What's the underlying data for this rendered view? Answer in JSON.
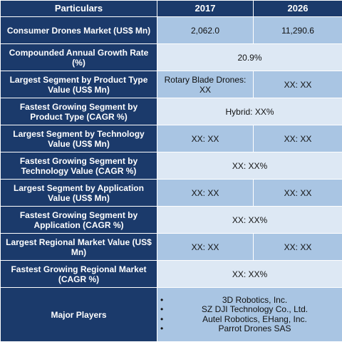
{
  "header": {
    "particulars": "Particulars",
    "year1": "2017",
    "year2": "2026"
  },
  "rows": {
    "market": {
      "label": "Consumer Drones Market (US$ Mn)",
      "v1": "2,062.0",
      "v2": "11,290.6"
    },
    "cagr": {
      "label": "Compounded Annual Growth Rate (%)",
      "value": "20.9%"
    },
    "seg_pt": {
      "label": "Largest Segment by Product Type Value (US$ Mn)",
      "v1": "Rotary Blade Drones: XX",
      "v2": "XX:  XX"
    },
    "fast_pt": {
      "label": "Fastest Growing Segment by Product Type (CAGR %)",
      "value": "Hybrid:  XX%"
    },
    "seg_tech": {
      "label": "Largest Segment by Technology Value (US$ Mn)",
      "v1": "XX: XX",
      "v2": "XX:  XX"
    },
    "fast_tech": {
      "label": "Fastest Growing Segment by Technology Value (CAGR %)",
      "value": "XX:  XX%"
    },
    "seg_app": {
      "label": "Largest Segment by Application Value (US$ Mn)",
      "v1": "XX:  XX",
      "v2": "XX:  XX"
    },
    "fast_app": {
      "label": "Fastest Growing Segment by Application (CAGR %)",
      "value": "XX: XX%"
    },
    "seg_reg": {
      "label": "Largest Regional Market Value (US$ Mn)",
      "v1": "XX: XX",
      "v2": "XX: XX"
    },
    "fast_reg": {
      "label": "Fastest Growing Regional Market (CAGR %)",
      "value": "XX: XX%"
    },
    "players": {
      "label": "Major Players",
      "bullet": "•",
      "items": [
        "3D Robotics, Inc.",
        "SZ DJI Technology Co., Ltd.",
        "Autel Robotics, EHang, Inc.",
        "Parrot Drones SAS"
      ]
    }
  },
  "colors": {
    "header_bg": "#1b3a6b",
    "dark_cell": "#a9c5e3",
    "light_cell": "#dde8f4"
  }
}
